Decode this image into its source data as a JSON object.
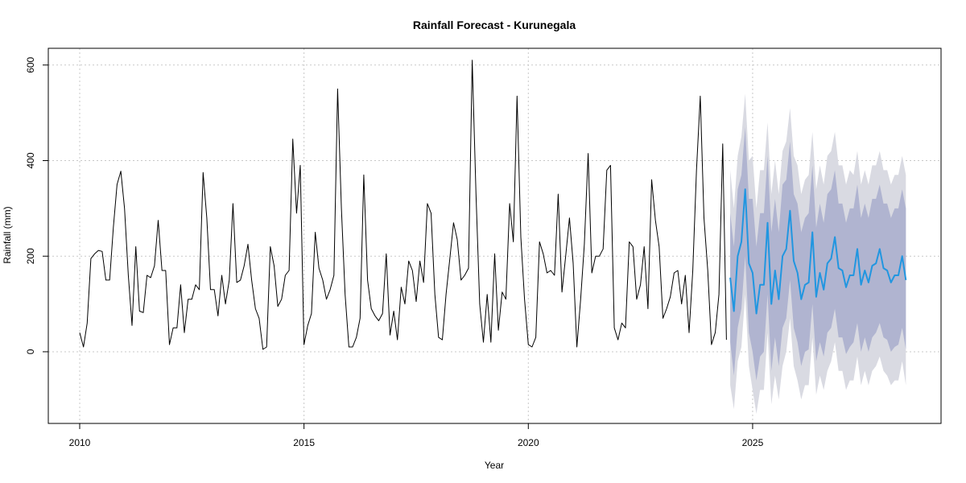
{
  "chart_data": {
    "type": "line",
    "title": "Rainfall Forecast - Kurunegala",
    "xlabel": "Year",
    "ylabel": "Rainfall (mm)",
    "xlim": [
      2009.3,
      2029.2
    ],
    "ylim": [
      -150,
      635
    ],
    "x_ticks": [
      2010,
      2015,
      2020,
      2025
    ],
    "y_ticks": [
      0,
      200,
      400,
      600
    ],
    "grid": true,
    "observed": {
      "start": 2010.0,
      "step": 0.08333,
      "color": "#000000",
      "values": [
        40,
        10,
        60,
        195,
        205,
        212,
        210,
        150,
        150,
        260,
        350,
        378,
        300,
        160,
        55,
        220,
        85,
        82,
        160,
        155,
        180,
        275,
        170,
        170,
        15,
        50,
        50,
        140,
        40,
        110,
        110,
        140,
        130,
        375,
        280,
        130,
        130,
        75,
        160,
        100,
        150,
        310,
        145,
        150,
        180,
        225,
        150,
        90,
        70,
        5,
        10,
        220,
        180,
        95,
        110,
        160,
        170,
        445,
        290,
        390,
        15,
        55,
        80,
        250,
        175,
        150,
        110,
        130,
        160,
        550,
        300,
        120,
        10,
        10,
        30,
        70,
        370,
        150,
        90,
        75,
        65,
        80,
        205,
        35,
        85,
        25,
        135,
        100,
        190,
        170,
        105,
        190,
        145,
        310,
        290,
        120,
        30,
        25,
        120,
        195,
        270,
        235,
        150,
        160,
        175,
        610,
        330,
        100,
        20,
        120,
        20,
        205,
        45,
        125,
        110,
        310,
        230,
        535,
        240,
        110,
        15,
        10,
        30,
        230,
        205,
        165,
        170,
        160,
        330,
        125,
        200,
        280,
        185,
        10,
        110,
        225,
        415,
        165,
        200,
        200,
        215,
        380,
        390,
        50,
        25,
        60,
        50,
        230,
        220,
        110,
        140,
        220,
        90,
        360,
        275,
        220,
        70,
        90,
        115,
        165,
        170,
        100,
        160,
        40,
        170,
        380,
        535,
        280,
        170,
        15,
        40,
        120,
        435,
        25
      ]
    },
    "forecast": {
      "start": 2024.5,
      "step": 0.08333,
      "color": "#2196e0",
      "band_80_color": "#b0b4d0",
      "band_95_color": "#d9dae2",
      "mean": [
        155,
        85,
        200,
        230,
        340,
        185,
        165,
        80,
        140,
        140,
        270,
        100,
        170,
        110,
        200,
        215,
        295,
        190,
        165,
        110,
        140,
        145,
        250,
        115,
        165,
        130,
        185,
        195,
        240,
        175,
        170,
        135,
        160,
        160,
        215,
        140,
        170,
        145,
        180,
        185,
        215,
        175,
        170,
        145,
        160,
        160,
        200,
        150
      ],
      "lo80": [
        20,
        -50,
        50,
        90,
        200,
        40,
        0,
        -60,
        -10,
        0,
        120,
        -40,
        30,
        -30,
        50,
        70,
        150,
        50,
        20,
        -30,
        0,
        5,
        100,
        -20,
        20,
        -10,
        40,
        50,
        90,
        30,
        30,
        -5,
        10,
        20,
        60,
        0,
        30,
        0,
        30,
        40,
        60,
        30,
        25,
        0,
        10,
        15,
        50,
        5
      ],
      "hi80": [
        290,
        220,
        340,
        370,
        470,
        320,
        320,
        220,
        290,
        290,
        410,
        250,
        320,
        250,
        350,
        360,
        440,
        330,
        310,
        250,
        280,
        290,
        390,
        260,
        310,
        270,
        330,
        340,
        380,
        310,
        310,
        270,
        300,
        300,
        350,
        280,
        310,
        280,
        320,
        320,
        350,
        310,
        310,
        280,
        300,
        300,
        340,
        300
      ],
      "lo95": [
        -70,
        -120,
        -20,
        10,
        120,
        -30,
        -80,
        -130,
        -80,
        -80,
        40,
        -110,
        -50,
        -100,
        -30,
        0,
        70,
        -30,
        -60,
        -100,
        -70,
        -70,
        30,
        -90,
        -50,
        -80,
        -40,
        -20,
        20,
        -40,
        -40,
        -80,
        -60,
        -60,
        -10,
        -70,
        -40,
        -70,
        -40,
        -30,
        -10,
        -40,
        -50,
        -70,
        -60,
        -60,
        -20,
        -70
      ],
      "hi95": [
        380,
        300,
        410,
        450,
        540,
        400,
        410,
        300,
        380,
        380,
        480,
        330,
        400,
        330,
        420,
        440,
        510,
        410,
        390,
        330,
        360,
        370,
        460,
        340,
        390,
        350,
        410,
        420,
        460,
        390,
        390,
        350,
        380,
        370,
        420,
        350,
        380,
        350,
        390,
        390,
        420,
        380,
        380,
        350,
        370,
        370,
        410,
        370
      ]
    }
  }
}
